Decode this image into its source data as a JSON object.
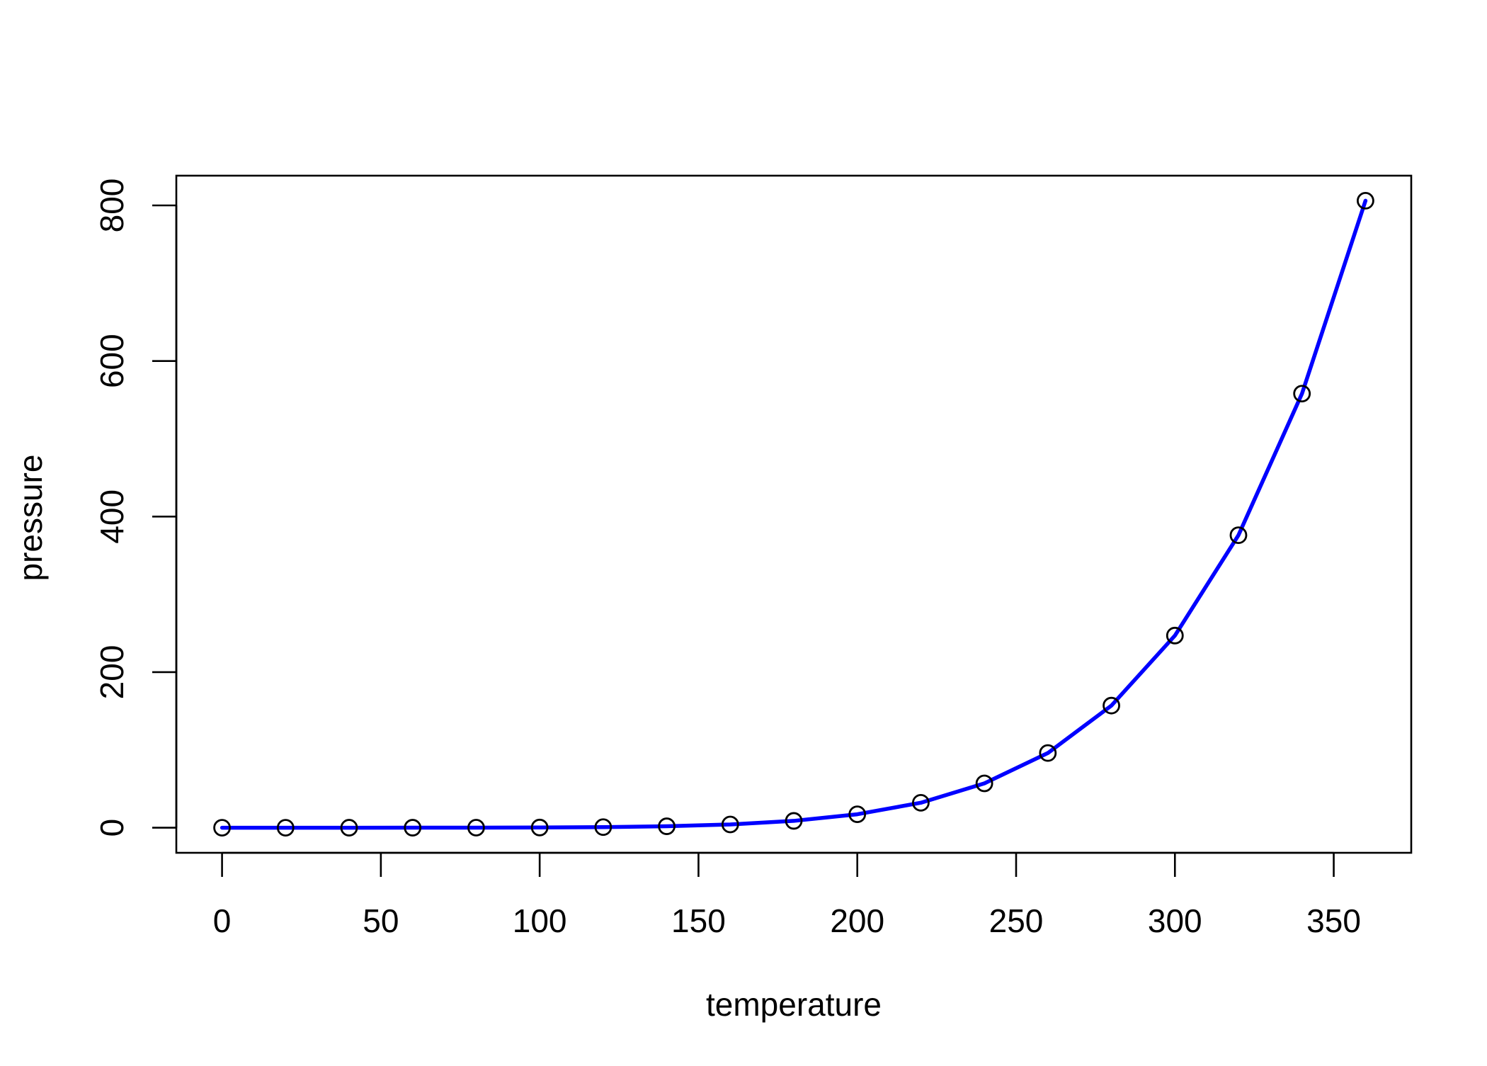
{
  "chart_data": {
    "type": "line",
    "title": "",
    "xlabel": "temperature",
    "ylabel": "pressure",
    "xlim": [
      -14.4,
      374.4
    ],
    "ylim": [
      -32.24,
      838.24
    ],
    "x_ticks": [
      0,
      50,
      100,
      150,
      200,
      250,
      300,
      350
    ],
    "y_ticks": [
      0,
      200,
      400,
      600,
      800
    ],
    "grid": false,
    "legend": "none",
    "line_color": "#0000ff",
    "point_color": "#000000",
    "marker": "open-circle",
    "series": [
      {
        "x": [
          0,
          20,
          40,
          60,
          80,
          100,
          120,
          140,
          160,
          180,
          200,
          220,
          240,
          260,
          280,
          300,
          320,
          340,
          360
        ],
        "values": [
          0.0002,
          0.0012,
          0.006,
          0.03,
          0.09,
          0.27,
          0.75,
          1.85,
          4.2,
          8.8,
          17.3,
          32.1,
          57,
          96,
          157,
          247,
          376,
          558,
          806
        ]
      }
    ]
  }
}
